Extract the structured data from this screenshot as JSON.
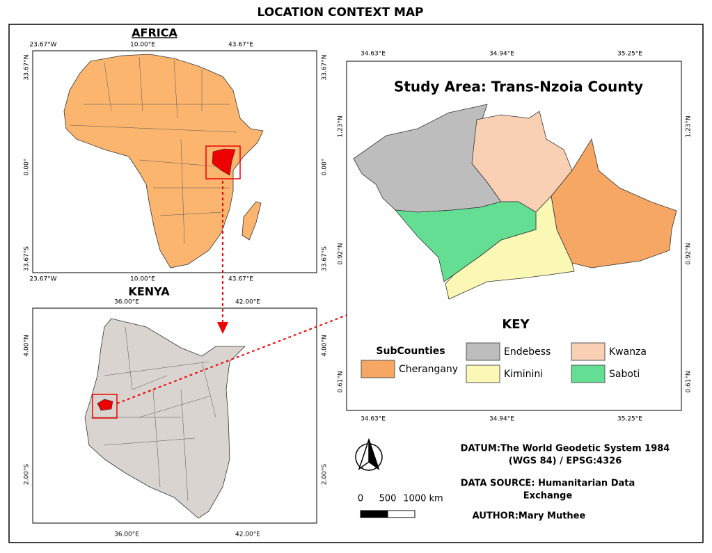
{
  "title": "LOCATION CONTEXT MAP",
  "africa": {
    "title": "AFRICA",
    "top": [
      "23.67°W",
      "10.00°E",
      "43.67°E"
    ],
    "bottom": [
      "23.67°W",
      "10.00°E",
      "43.67°E"
    ],
    "left": [
      "33.67°N",
      "0.00°",
      "33.67°S"
    ],
    "right": [
      "33.67°N",
      "0.00°",
      "33.67°S"
    ]
  },
  "kenya": {
    "title": "KENYA",
    "top": [
      "36.00°E",
      "42.00°E"
    ],
    "bottom": [
      "36.00°E",
      "42.00°E"
    ],
    "left": [
      "4.00°N",
      "2.00°S"
    ],
    "right": [
      "4.00°N",
      "2.00°S"
    ]
  },
  "study": {
    "title": "Study Area: Trans-Nzoia County",
    "top": [
      "34.63°E",
      "34.94°E",
      "35.25°E"
    ],
    "bottom": [
      "34.63°E",
      "34.94°E",
      "35.25°E"
    ],
    "left": [
      "1.23°N",
      "0.92°N",
      "0.61°N"
    ],
    "right": [
      "1.23°N",
      "0.92°N",
      "0.61°N"
    ]
  },
  "key": {
    "title": "KEY",
    "group": "SubCounties",
    "items": [
      {
        "label": "Cherangany",
        "color": "#f6a763"
      },
      {
        "label": "Endebess",
        "color": "#bdbdbd"
      },
      {
        "label": "Kiminini",
        "color": "#fbf7b5"
      },
      {
        "label": "Kwanza",
        "color": "#f9d0b4"
      },
      {
        "label": "Saboti",
        "color": "#63de92"
      }
    ]
  },
  "scale": [
    "0",
    "500",
    "1000 km"
  ],
  "datum": [
    "DATUM:The World Geodetic System 1984",
    "(WGS 84) / EPSG:4326"
  ],
  "source": [
    "DATA SOURCE: Humanitarian Data",
    "Exchange"
  ],
  "author": "AUTHOR:Mary Muthee"
}
